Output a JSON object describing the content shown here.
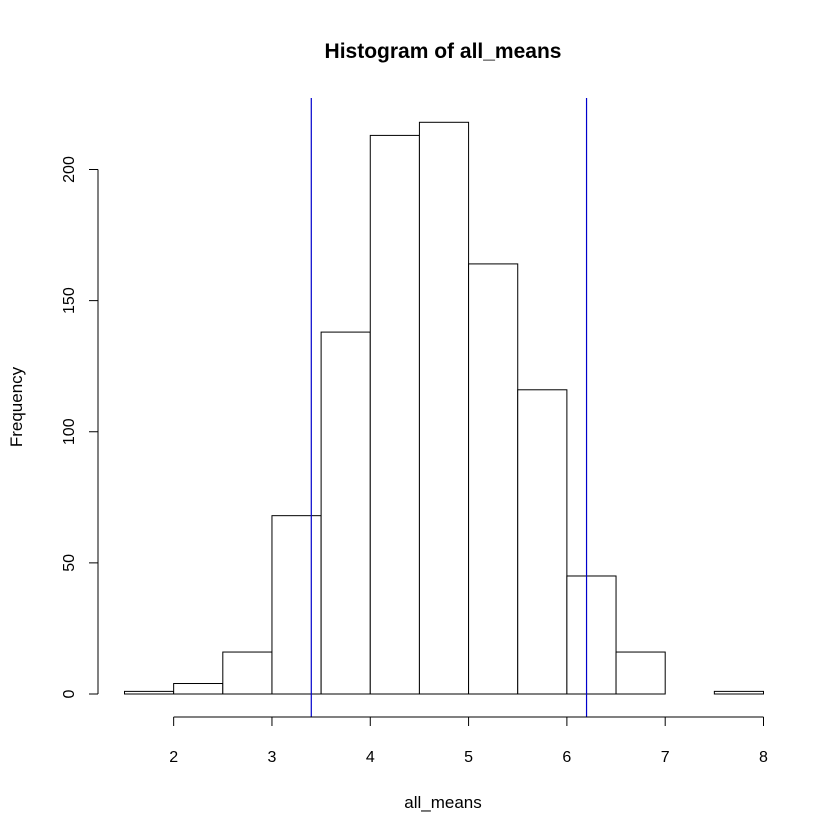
{
  "chart_data": {
    "type": "bar",
    "title": "Histogram of all_means",
    "xlabel": "all_means",
    "ylabel": "Frequency",
    "bin_edges": [
      1.5,
      2.0,
      2.5,
      3.0,
      3.5,
      4.0,
      4.5,
      5.0,
      5.5,
      6.0,
      6.5,
      7.0,
      7.5,
      8.0
    ],
    "values": [
      1,
      4,
      16,
      68,
      138,
      213,
      218,
      164,
      116,
      45,
      16,
      0,
      1
    ],
    "xlim": [
      1.5,
      8.0
    ],
    "ylim": [
      0,
      220
    ],
    "x_ticks": [
      2,
      3,
      4,
      5,
      6,
      7,
      8
    ],
    "y_ticks": [
      0,
      50,
      100,
      150,
      200
    ],
    "vlines": [
      3.4,
      6.2
    ],
    "vline_color": "#0000CC",
    "bar_fill": "#FFFFFF",
    "bar_stroke": "#000000",
    "grid": false
  }
}
